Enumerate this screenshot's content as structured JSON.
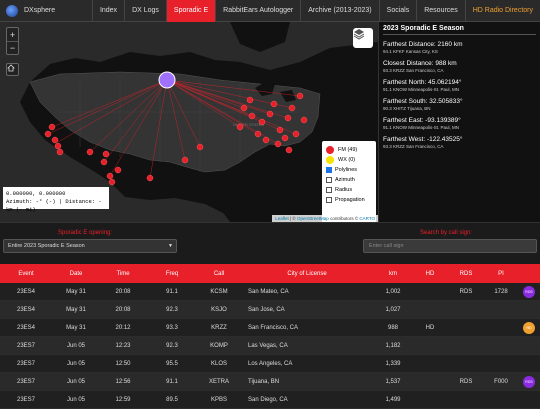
{
  "brand": {
    "name": "DXsphere"
  },
  "nav": [
    {
      "label": "Index",
      "active": false
    },
    {
      "label": "DX Logs",
      "active": false
    },
    {
      "label": "Sporadic E",
      "active": true
    },
    {
      "label": "RabbitEars Autologger",
      "active": false
    },
    {
      "label": "Archive (2013-2023)",
      "active": false
    },
    {
      "label": "Socials",
      "active": false
    },
    {
      "label": "Resources",
      "active": false
    },
    {
      "label": "HD Radio Directory",
      "active": false
    }
  ],
  "map": {
    "zoom_in": "+",
    "zoom_out": "−",
    "country_label": "UNITED STATES",
    "coords_line1": "0.000000, 0.000000",
    "coords_line2": "Azimuth: -° (-) | Distance: - km (- mi)",
    "legend": {
      "fm": "FM (49)",
      "wx": "WX (0)",
      "polylines": "Polylines",
      "azimuth": "Azimuth",
      "radius": "Radius",
      "propagation": "Propagation"
    },
    "attribution": {
      "leaflet": "Leaflet",
      "osm": "OpenStreetMap",
      "contributors": "contributors",
      "carto": "CARTO"
    },
    "colors": {
      "fm": "#e8202a",
      "wx": "#f5e300",
      "home": "#a070ff"
    }
  },
  "season": {
    "title": "2023 Sporadic E Season",
    "stats": [
      {
        "heading": "Farthest Distance: 2160 km",
        "detail": "94.1 KFKF Kansas City, KS"
      },
      {
        "heading": "Closest Distance: 988 km",
        "detail": "93.3 KRZZ San Francisco, CA"
      },
      {
        "heading": "Farthest North: 45.062194°",
        "detail": "91.1 KNOW Minneapolis-St. Paul, MN"
      },
      {
        "heading": "Farthest South: 32.505833°",
        "detail": "90.3 XHITZ Tijuana, BN"
      },
      {
        "heading": "Farthest East: -93.139389°",
        "detail": "91.1 KNOW Minneapolis-St. Paul, MN"
      },
      {
        "heading": "Farthest West: -122.43525°",
        "detail": "93.3 KRZZ San Francisco, CA"
      }
    ]
  },
  "filters": {
    "opening_label": "Sporadic E opening:",
    "opening_value": "Entire 2023 Sporadic E Season",
    "search_label": "Search by call sign:",
    "search_placeholder": "Enter call sign"
  },
  "table": {
    "headers": [
      "Event",
      "Date",
      "Time",
      "Freq",
      "Call",
      "City of License",
      "km",
      "HD",
      "RDS",
      "PI"
    ],
    "rows": [
      {
        "event": "23ES4",
        "date": "May 31",
        "time": "20:08",
        "freq": "91.1",
        "call": "KCSM",
        "city": "San Mateo, CA",
        "km": "1,002",
        "hd": "",
        "rds": "RDS",
        "pi": "1728",
        "badge": "RDS"
      },
      {
        "event": "23ES4",
        "date": "May 31",
        "time": "20:08",
        "freq": "92.3",
        "call": "KSJO",
        "city": "San Jose, CA",
        "km": "1,027",
        "hd": "",
        "rds": "",
        "pi": "",
        "badge": ""
      },
      {
        "event": "23ES4",
        "date": "May 31",
        "time": "20:12",
        "freq": "93.3",
        "call": "KRZZ",
        "city": "San Francisco, CA",
        "km": "988",
        "hd": "HD",
        "rds": "",
        "pi": "",
        "badge": "HD"
      },
      {
        "event": "23ES7",
        "date": "Jun 05",
        "time": "12:23",
        "freq": "92.3",
        "call": "KOMP",
        "city": "Las Vegas, CA",
        "km": "1,182",
        "hd": "",
        "rds": "",
        "pi": "",
        "badge": ""
      },
      {
        "event": "23ES7",
        "date": "Jun 05",
        "time": "12:50",
        "freq": "95.5",
        "call": "KLOS",
        "city": "Los Angeles, CA",
        "km": "1,339",
        "hd": "",
        "rds": "",
        "pi": "",
        "badge": ""
      },
      {
        "event": "23ES7",
        "date": "Jun 05",
        "time": "12:56",
        "freq": "91.1",
        "call": "XETRA",
        "city": "Tijuana, BN",
        "km": "1,537",
        "hd": "",
        "rds": "RDS",
        "pi": "F000",
        "badge": "RDS"
      },
      {
        "event": "23ES7",
        "date": "Jun 05",
        "time": "12:59",
        "freq": "89.5",
        "call": "KPBS",
        "city": "San Diego, CA",
        "km": "1,499",
        "hd": "",
        "rds": "",
        "pi": "",
        "badge": ""
      }
    ]
  }
}
